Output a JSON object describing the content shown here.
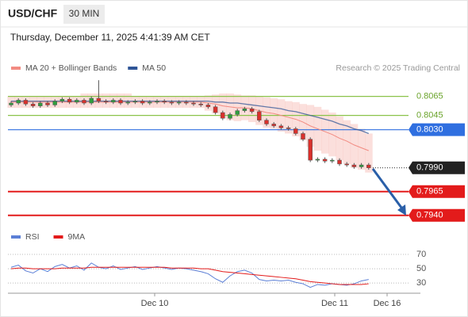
{
  "header": {
    "symbol": "USD/CHF",
    "timeframe": "30 MIN",
    "timestamp": "Thursday, December 11, 2025 4:41:39 AM CET",
    "credit": "Research © 2025 Trading Central"
  },
  "chart_data": [
    {
      "type": "candlestick",
      "up_color": "#2e9e3e",
      "down_color": "#d9302c",
      "ylim": [
        0.7929,
        0.8083
      ],
      "x_labels": [
        "Dec 10",
        "Dec 11",
        "Dec 16"
      ],
      "open": [
        0.8056,
        0.8058,
        0.8061,
        0.8057,
        0.8055,
        0.8058,
        0.8056,
        0.806,
        0.8062,
        0.8059,
        0.8061,
        0.8058,
        0.8063,
        0.806,
        0.8059,
        0.8061,
        0.8058,
        0.8059,
        0.806,
        0.8058,
        0.8059,
        0.806,
        0.8059,
        0.8058,
        0.8059,
        0.8058,
        0.8057,
        0.8056,
        0.8054,
        0.8048,
        0.8042,
        0.8046,
        0.805,
        0.8052,
        0.8049,
        0.804,
        0.8036,
        0.8034,
        0.8032,
        0.8031,
        0.8026,
        0.802,
        0.7998,
        0.7999,
        0.7997,
        0.7998,
        0.7994,
        0.7993,
        0.7991,
        0.7993
      ],
      "high": [
        0.806,
        0.8063,
        0.8063,
        0.8059,
        0.806,
        0.806,
        0.8062,
        0.8064,
        0.8064,
        0.8063,
        0.8063,
        0.8065,
        0.8082,
        0.8062,
        0.8063,
        0.8063,
        0.8061,
        0.8062,
        0.8062,
        0.8061,
        0.8062,
        0.8062,
        0.8061,
        0.8061,
        0.8061,
        0.806,
        0.8059,
        0.8058,
        0.8056,
        0.805,
        0.8048,
        0.8052,
        0.8054,
        0.8054,
        0.8051,
        0.8042,
        0.8038,
        0.8036,
        0.8034,
        0.8033,
        0.8028,
        0.8022,
        0.8001,
        0.8001,
        0.8,
        0.8,
        0.7996,
        0.7995,
        0.7995,
        0.7995
      ],
      "low": [
        0.8054,
        0.8056,
        0.8055,
        0.8053,
        0.8053,
        0.8054,
        0.8054,
        0.8058,
        0.8057,
        0.8057,
        0.8056,
        0.8056,
        0.8058,
        0.8057,
        0.8057,
        0.8056,
        0.8056,
        0.8057,
        0.8056,
        0.8056,
        0.8057,
        0.8057,
        0.8056,
        0.8056,
        0.8056,
        0.8055,
        0.8054,
        0.8052,
        0.8046,
        0.804,
        0.804,
        0.8044,
        0.8048,
        0.8047,
        0.8038,
        0.8034,
        0.8032,
        0.803,
        0.8029,
        0.8024,
        0.8018,
        0.7996,
        0.7996,
        0.7995,
        0.7995,
        0.7992,
        0.7991,
        0.7989,
        0.7989,
        0.7988
      ],
      "close": [
        0.8058,
        0.8061,
        0.8057,
        0.8055,
        0.8058,
        0.8056,
        0.806,
        0.8062,
        0.8059,
        0.8061,
        0.8058,
        0.8063,
        0.806,
        0.8059,
        0.8061,
        0.8058,
        0.8059,
        0.806,
        0.8058,
        0.8059,
        0.806,
        0.8059,
        0.8058,
        0.8059,
        0.8058,
        0.8057,
        0.8056,
        0.8054,
        0.8048,
        0.8042,
        0.8046,
        0.805,
        0.8052,
        0.8049,
        0.804,
        0.8036,
        0.8034,
        0.8032,
        0.8031,
        0.8026,
        0.802,
        0.7998,
        0.7999,
        0.7997,
        0.7998,
        0.7994,
        0.7993,
        0.7991,
        0.7993,
        0.799
      ],
      "series": [
        {
          "name": "MA 20 + Bollinger Bands",
          "color": "#f28b82",
          "values": [
            0.8059,
            0.8059,
            0.8059,
            0.8059,
            0.8059,
            0.8059,
            0.8059,
            0.8059,
            0.8059,
            0.8059,
            0.8059,
            0.8059,
            0.8059,
            0.8059,
            0.8059,
            0.8059,
            0.8059,
            0.8059,
            0.8059,
            0.8059,
            0.8059,
            0.8059,
            0.8059,
            0.8059,
            0.8059,
            0.8059,
            0.8059,
            0.8058,
            0.8057,
            0.8055,
            0.8054,
            0.8053,
            0.8053,
            0.8052,
            0.805,
            0.8048,
            0.8047,
            0.8045,
            0.8043,
            0.8041,
            0.8038,
            0.8034,
            0.8031,
            0.8028,
            0.8025,
            0.8021,
            0.8018,
            0.8014,
            0.8011,
            0.8008
          ],
          "upper": [
            0.8065,
            0.8065,
            0.8065,
            0.8065,
            0.8065,
            0.8065,
            0.8065,
            0.8065,
            0.8065,
            0.8065,
            0.8068,
            0.8068,
            0.8068,
            0.8068,
            0.8068,
            0.8068,
            0.8068,
            0.8065,
            0.8065,
            0.8065,
            0.8065,
            0.8065,
            0.8065,
            0.8065,
            0.8065,
            0.8065,
            0.8065,
            0.8066,
            0.8067,
            0.8068,
            0.8068,
            0.8067,
            0.8066,
            0.8066,
            0.8065,
            0.8064,
            0.8063,
            0.8062,
            0.806,
            0.8059,
            0.8057,
            0.8056,
            0.8054,
            0.8051,
            0.8048,
            0.8044,
            0.804,
            0.8036,
            0.8031,
            0.8026
          ],
          "lower": [
            0.8053,
            0.8053,
            0.8053,
            0.8053,
            0.8053,
            0.8053,
            0.8053,
            0.8053,
            0.8053,
            0.8053,
            0.8053,
            0.8053,
            0.8053,
            0.8053,
            0.8053,
            0.8053,
            0.8053,
            0.8053,
            0.8053,
            0.8053,
            0.8053,
            0.8053,
            0.8053,
            0.8053,
            0.8053,
            0.8053,
            0.8053,
            0.805,
            0.8047,
            0.8042,
            0.804,
            0.8039,
            0.804,
            0.8038,
            0.8035,
            0.8032,
            0.8031,
            0.8028,
            0.8026,
            0.8023,
            0.8019,
            0.8012,
            0.8008,
            0.8005,
            0.8002,
            0.7998,
            0.7994,
            0.799,
            0.7988,
            0.7985
          ]
        },
        {
          "name": "MA 50",
          "color": "#2f5597",
          "values": [
            0.806,
            0.806,
            0.806,
            0.806,
            0.806,
            0.806,
            0.806,
            0.806,
            0.806,
            0.806,
            0.806,
            0.806,
            0.806,
            0.806,
            0.806,
            0.806,
            0.806,
            0.806,
            0.806,
            0.806,
            0.806,
            0.806,
            0.806,
            0.806,
            0.806,
            0.806,
            0.806,
            0.806,
            0.8059,
            0.8059,
            0.8058,
            0.8058,
            0.8057,
            0.8056,
            0.8055,
            0.8054,
            0.8053,
            0.8052,
            0.805,
            0.8049,
            0.8047,
            0.8045,
            0.8043,
            0.8041,
            0.8039,
            0.8036,
            0.8034,
            0.8031,
            0.8029,
            0.8026
          ]
        }
      ],
      "levels": [
        {
          "value": 0.8065,
          "kind": "resistance",
          "color": "#8bc34a"
        },
        {
          "value": 0.8045,
          "kind": "resistance",
          "color": "#8bc34a"
        },
        {
          "value": 0.803,
          "label": "0.8030",
          "kind": "pivot",
          "color": "#2f6fe0"
        },
        {
          "value": 0.799,
          "label": "0.7990",
          "kind": "last",
          "color": "#222222"
        },
        {
          "value": 0.7965,
          "kind": "support",
          "color": "#e31b1b"
        },
        {
          "value": 0.794,
          "label": "0.7940",
          "kind": "support",
          "color": "#e31b1b"
        }
      ]
    },
    {
      "type": "line",
      "ylim": [
        18,
        80
      ],
      "yticks": [
        30,
        50,
        70
      ],
      "series": [
        {
          "name": "RSI",
          "color": "#5b7fd6",
          "values": [
            52,
            55,
            47,
            44,
            50,
            46,
            53,
            56,
            51,
            54,
            48,
            58,
            52,
            50,
            54,
            49,
            51,
            53,
            49,
            51,
            53,
            51,
            49,
            51,
            50,
            48,
            46,
            43,
            36,
            31,
            40,
            46,
            48,
            44,
            35,
            33,
            34,
            33,
            34,
            31,
            29,
            24,
            28,
            27,
            29,
            28,
            27,
            29,
            33,
            35
          ]
        },
        {
          "name": "9MA",
          "color": "#e31b1b",
          "values": [
            50,
            51,
            51,
            50,
            50,
            50,
            50,
            51,
            51,
            51,
            51,
            52,
            52,
            52,
            52,
            52,
            52,
            52,
            52,
            52,
            52,
            52,
            51,
            51,
            51,
            51,
            50,
            50,
            48,
            46,
            45,
            44,
            43,
            42,
            41,
            40,
            39,
            38,
            37,
            36,
            34,
            32,
            31,
            30,
            29,
            28,
            28,
            28,
            28,
            29
          ]
        }
      ]
    }
  ]
}
